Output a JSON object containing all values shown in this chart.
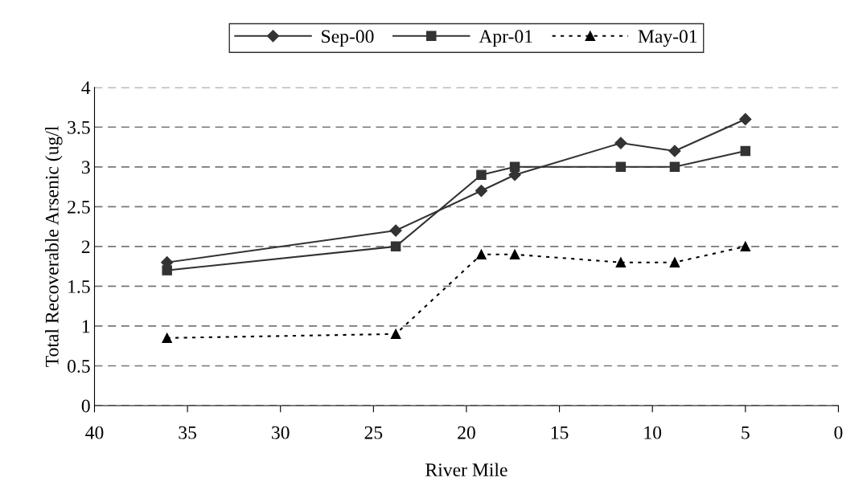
{
  "chart_data": {
    "type": "line",
    "xlabel": "River Mile",
    "ylabel": "Total Recoverable Arsenic (ug/l",
    "x": [
      36.1,
      23.8,
      19.2,
      17.4,
      11.7,
      8.8,
      5.0
    ],
    "series": [
      {
        "name": "Sep-00",
        "color": "#333333",
        "marker": "diamond",
        "line_style": "solid",
        "values": [
          1.8,
          2.2,
          2.7,
          2.9,
          3.3,
          3.2,
          3.6
        ]
      },
      {
        "name": "Apr-01",
        "color": "#333333",
        "marker": "square",
        "line_style": "solid",
        "values": [
          1.7,
          2.0,
          2.9,
          3.0,
          3.0,
          3.0,
          3.2
        ]
      },
      {
        "name": "May-01",
        "color": "#000000",
        "marker": "triangle",
        "line_style": "dotted",
        "values": [
          0.85,
          0.9,
          1.9,
          1.9,
          1.8,
          1.8,
          2.0
        ]
      }
    ],
    "xlim": [
      40,
      0
    ],
    "xticks": [
      40,
      35,
      30,
      25,
      20,
      15,
      10,
      5,
      0
    ],
    "ylim": [
      0,
      4
    ],
    "yticks": [
      0,
      0.5,
      1,
      1.5,
      2,
      2.5,
      3,
      3.5,
      4
    ],
    "grid": "y",
    "legend": "top"
  }
}
